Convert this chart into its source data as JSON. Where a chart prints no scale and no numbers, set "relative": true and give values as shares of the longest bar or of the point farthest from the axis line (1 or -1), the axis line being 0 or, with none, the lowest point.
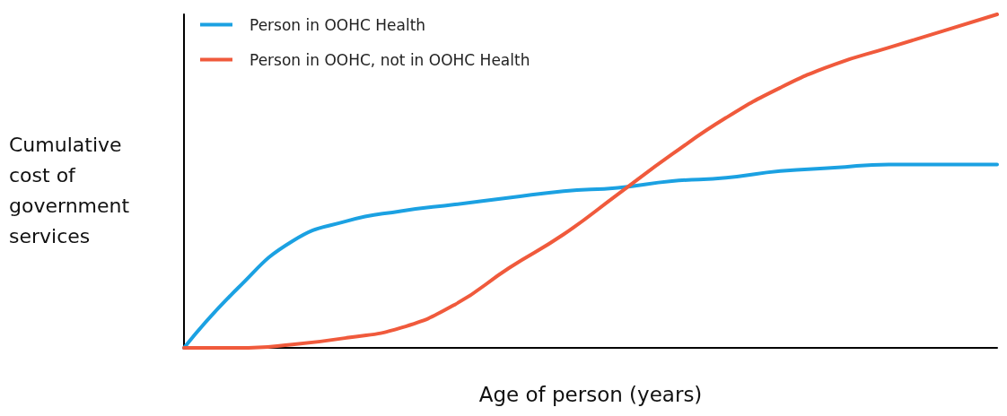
{
  "chart_data": {
    "type": "line",
    "relative": true,
    "xlabel": "Age of person (years)",
    "ylabel": "Cumulative cost of government services",
    "categories": [
      null,
      null,
      null,
      null,
      null,
      null,
      null,
      null,
      null,
      null,
      null,
      null,
      null,
      null,
      null,
      null
    ],
    "legend": "top left",
    "grid": false,
    "marker": "none",
    "line_style": "solid",
    "series": [
      {
        "name": "Person in OOHC Health",
        "color": "#1ba1e2",
        "values": [
          0,
          0.18,
          0.32,
          0.38,
          0.41,
          0.43,
          0.45,
          0.47,
          0.48,
          0.5,
          0.51,
          0.53,
          0.54,
          0.55,
          0.55,
          0.55
        ]
      },
      {
        "name": "Person in OOHC, not in OOHC Health",
        "color": "#f05a3c",
        "values": [
          0,
          0,
          0.01,
          0.03,
          0.06,
          0.13,
          0.24,
          0.34,
          0.46,
          0.58,
          0.69,
          0.78,
          0.85,
          0.9,
          0.95,
          1
        ]
      }
    ]
  }
}
